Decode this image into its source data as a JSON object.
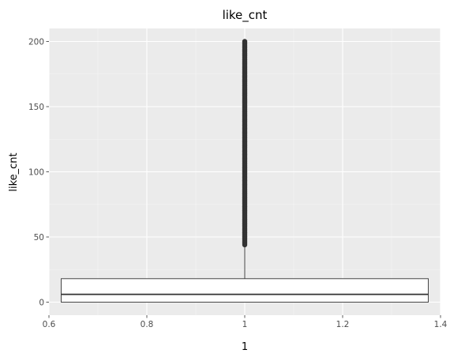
{
  "chart_data": {
    "type": "boxplot",
    "title": "like_cnt",
    "xlabel": "1",
    "ylabel": "like_cnt",
    "xlim": [
      0.6,
      1.4
    ],
    "ylim": [
      -10,
      210
    ],
    "x_ticks": [
      0.6,
      0.8,
      1.0,
      1.2,
      1.4
    ],
    "x_tick_labels": [
      "0.6",
      "0.8",
      "1",
      "1.2",
      "1.4"
    ],
    "y_ticks": [
      0,
      50,
      100,
      150,
      200
    ],
    "y_tick_labels": [
      "0",
      "50",
      "100",
      "150",
      "200"
    ],
    "grid": true,
    "box": {
      "x": 1.0,
      "x_min": 0.625,
      "x_max": 1.375,
      "min": 0,
      "q1": 0,
      "median": 6,
      "q3": 18,
      "whisker_high": 44,
      "outliers_from": 44,
      "outliers_to": 200
    },
    "colors": {
      "panel": "#ebebeb",
      "grid_major": "#ffffff",
      "grid_minor": "#f5f5f5",
      "box_fill": "#ffffff",
      "box_line": "#333333"
    }
  }
}
